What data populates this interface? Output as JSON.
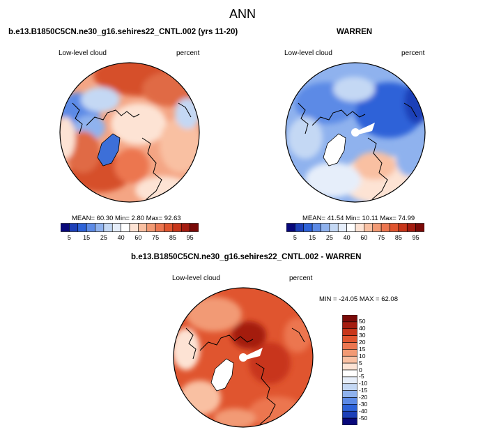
{
  "figure": {
    "title": "ANN"
  },
  "panels": [
    {
      "title": "b.e13.B1850C5CN.ne30_g16.sehires22_CNTL.002 (yrs 11-20)",
      "left_label": "Low-level cloud",
      "right_label": "percent",
      "stats": "MEAN=  60.30  Min=   2.80  Max=  92.63"
    },
    {
      "title": "WARREN",
      "left_label": "Low-level cloud",
      "right_label": "percent",
      "stats": "MEAN=  41.54  Min=  10.11  Max=  74.99"
    },
    {
      "title": "b.e13.B1850C5CN.ne30_g16.sehires22_CNTL.002 - WARREN",
      "left_label": "Low-level cloud",
      "right_label": "percent",
      "stats": "MIN = -24.05 MAX =  62.08"
    }
  ],
  "colorbar_abs": {
    "labels": [
      "5",
      "15",
      "25",
      "40",
      "60",
      "75",
      "85",
      "95"
    ],
    "colors": [
      "#08087a",
      "#1c3fb8",
      "#2d62d8",
      "#5c8ae6",
      "#8fb2ee",
      "#c4d8f4",
      "#e6eefa",
      "#ffffff",
      "#fde3d4",
      "#f9c0a2",
      "#f29a74",
      "#ec7650",
      "#e0552f",
      "#c8361a",
      "#a41c10",
      "#7a0a08"
    ]
  },
  "colorbar_diff": {
    "labels": [
      "50",
      "40",
      "30",
      "20",
      "15",
      "10",
      "5",
      "0",
      "-5",
      "-10",
      "-15",
      "-20",
      "-30",
      "-40",
      "-50"
    ],
    "colors": [
      "#7a0a08",
      "#a41c10",
      "#c8361a",
      "#e0552f",
      "#ec7650",
      "#f29a74",
      "#f9c0a2",
      "#fde3d4",
      "#ffffff",
      "#e6eefa",
      "#c4d8f4",
      "#8fb2ee",
      "#5c8ae6",
      "#2d62d8",
      "#1c3fb8",
      "#08087a"
    ]
  }
}
